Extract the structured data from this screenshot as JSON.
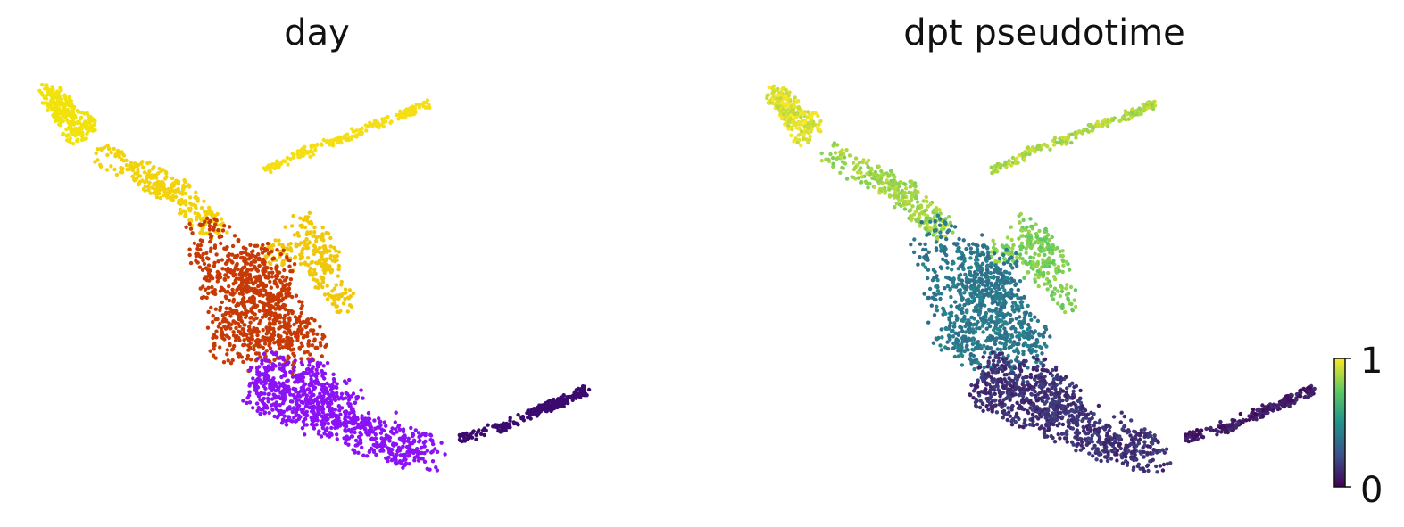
{
  "chart_data": [
    {
      "type": "scatter",
      "title": "day",
      "xlabel": "",
      "ylabel": "",
      "axes": "off",
      "color_encoding": "categorical day (early to late)",
      "regions": [
        {
          "name": "left-arm tip",
          "color": "#f2e20c"
        },
        {
          "name": "upper branch",
          "color": "#f2d20a"
        },
        {
          "name": "long thin branch",
          "color": "#f5df14"
        },
        {
          "name": "central cluster top",
          "color": "#f0c70b"
        },
        {
          "name": "middle mass",
          "color": "#c73a05"
        },
        {
          "name": "lower body",
          "color": "#8a12f5"
        },
        {
          "name": "right tail",
          "color": "#3a0a6e"
        }
      ]
    },
    {
      "type": "scatter",
      "title": "dpt pseudotime",
      "xlabel": "",
      "ylabel": "",
      "axes": "off",
      "color_encoding": "continuous viridis",
      "colorbar": {
        "min": 0,
        "max": 1,
        "tick_labels": [
          "0",
          "1"
        ],
        "placement": "right",
        "colormap": "viridis"
      },
      "regions": [
        {
          "name": "left-arm tip",
          "value": 0.95
        },
        {
          "name": "upper branch",
          "value": 0.85
        },
        {
          "name": "long thin branch",
          "value": 0.88
        },
        {
          "name": "central cluster top",
          "value": 0.8
        },
        {
          "name": "middle mass",
          "value": 0.4
        },
        {
          "name": "lower body",
          "value": 0.15
        },
        {
          "name": "right tail",
          "value": 0.08
        }
      ]
    }
  ]
}
